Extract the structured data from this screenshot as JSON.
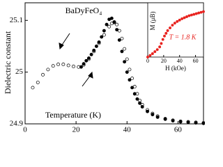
{
  "chart_data": [
    {
      "type": "scatter",
      "title": "BaDyFeO₄",
      "xlabel": "Temperature (K)",
      "ylabel": "Dielectric constant",
      "xlim": [
        0,
        70
      ],
      "ylim": [
        24.9,
        25.134
      ],
      "xticks": [
        0,
        20,
        40,
        60
      ],
      "yticks": [
        24.9,
        25.0,
        25.1
      ],
      "series": [
        {
          "marker": "open",
          "color": "#000000",
          "x": [
            3,
            5,
            7,
            9,
            11,
            13,
            15,
            17,
            19,
            21,
            23,
            25,
            27,
            29,
            31,
            33,
            34,
            35,
            36,
            37,
            38,
            39,
            40,
            41,
            42,
            43,
            44,
            45,
            46,
            48,
            50,
            52,
            55,
            58,
            61,
            64,
            67,
            70
          ],
          "values": [
            24.97,
            24.98,
            24.995,
            25.005,
            25.012,
            25.015,
            25.015,
            25.013,
            25.011,
            25.01,
            25.014,
            25.025,
            25.04,
            25.056,
            25.072,
            25.088,
            25.094,
            25.096,
            25.092,
            25.08,
            25.065,
            25.045,
            25.025,
            25.005,
            24.988,
            24.972,
            24.958,
            24.945,
            24.937,
            24.927,
            24.92,
            24.915,
            24.91,
            24.907,
            24.905,
            24.904,
            24.903,
            24.902
          ]
        },
        {
          "marker": "filled",
          "color": "#000000",
          "x": [
            22,
            23,
            24,
            25,
            26,
            27,
            28,
            29,
            30,
            31,
            32,
            33,
            34,
            35,
            36,
            37,
            38,
            39,
            40,
            41,
            42,
            43,
            44,
            45,
            46,
            48,
            50,
            52,
            55,
            58,
            61,
            64,
            67,
            70
          ],
          "values": [
            25.01,
            25.016,
            25.022,
            25.027,
            25.034,
            25.042,
            25.05,
            25.058,
            25.068,
            25.08,
            25.092,
            25.102,
            25.104,
            25.097,
            25.082,
            25.062,
            25.04,
            25.02,
            25.0,
            24.985,
            24.97,
            24.958,
            24.948,
            24.94,
            24.933,
            24.924,
            24.918,
            24.913,
            24.909,
            24.906,
            24.904,
            24.903,
            24.902,
            24.901
          ]
        }
      ]
    },
    {
      "type": "scatter",
      "xlabel": "H (kOe)",
      "ylabel": "M (μB)",
      "annotation": "T = 1.8 K",
      "xlim": [
        0,
        70
      ],
      "ylim": [
        0,
        8
      ],
      "xticks": [
        0,
        20,
        40,
        60
      ],
      "series": [
        {
          "marker": "filled",
          "color": "#e8231f",
          "x": [
            0,
            3,
            6,
            9,
            12,
            15,
            17,
            19,
            21,
            23,
            25,
            28,
            31,
            34,
            37,
            40,
            43,
            46,
            49,
            52,
            55,
            58,
            61,
            64,
            67,
            70
          ],
          "values": [
            0,
            0.25,
            0.5,
            0.8,
            1.1,
            1.5,
            2.0,
            2.6,
            3.1,
            3.5,
            3.9,
            4.3,
            4.7,
            5.0,
            5.25,
            5.45,
            5.65,
            5.8,
            5.95,
            6.1,
            6.2,
            6.3,
            6.4,
            6.5,
            6.6,
            6.7
          ]
        }
      ]
    }
  ]
}
